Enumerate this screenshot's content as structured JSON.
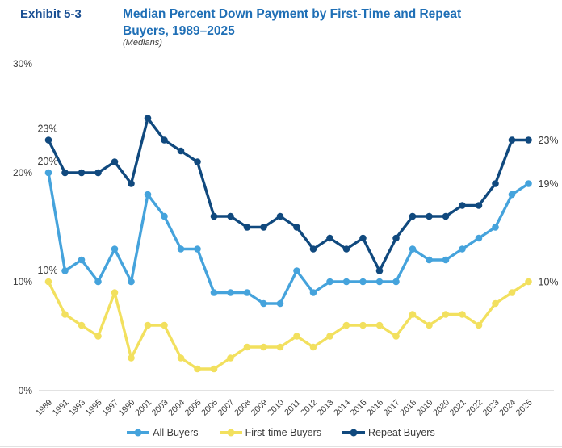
{
  "header": {
    "exhibit_label": "Exhibit 5-3",
    "title_line1": "Median Percent Down Payment by First-Time and Repeat",
    "title_line2": "Buyers, 1989–2025",
    "subtitle": "(Medians)"
  },
  "colors": {
    "exhibit_label": "#194f93",
    "title": "#1f6fb6",
    "text": "#3b3b3b",
    "axis_line": "#d9d9d9",
    "all_buyers": "#45a3dc",
    "first_time_buyers": "#f2e05e",
    "repeat_buyers": "#10497e"
  },
  "chart_data": {
    "type": "line",
    "title": "Median Percent Down Payment by First-Time and Repeat Buyers, 1989–2025",
    "subtitle": "(Medians)",
    "xlabel": "",
    "ylabel": "",
    "ylim": [
      0,
      30
    ],
    "grid": "none",
    "legend_position": "bottom",
    "categories": [
      "1989",
      "1991",
      "1993",
      "1995",
      "1997",
      "1999",
      "2001",
      "2003",
      "2004",
      "2005",
      "2006",
      "2007",
      "2008",
      "2009",
      "2010",
      "2011",
      "2012",
      "2013",
      "2014",
      "2015",
      "2016",
      "2017",
      "2018",
      "2019",
      "2020",
      "2021",
      "2022",
      "2023",
      "2024",
      "2025"
    ],
    "y_axis": {
      "ticks": [
        30,
        20,
        10,
        0
      ],
      "tick_labels": [
        "30%",
        "20%",
        "10%",
        "0%"
      ]
    },
    "series": [
      {
        "name": "All Buyers",
        "color": "#45a3dc",
        "first_label": "20%",
        "last_label": "19%",
        "values": [
          20,
          11,
          12,
          10,
          13,
          10,
          18,
          16,
          13,
          13,
          9,
          9,
          9,
          8,
          8,
          11,
          9,
          10,
          10,
          10,
          10,
          10,
          13,
          12,
          12,
          13,
          14,
          15,
          18,
          19
        ]
      },
      {
        "name": "First-time Buyers",
        "color": "#f2e05e",
        "first_label": "10%",
        "last_label": "10%",
        "values": [
          10,
          7,
          6,
          5,
          9,
          3,
          6,
          6,
          3,
          2,
          2,
          3,
          4,
          4,
          4,
          5,
          4,
          5,
          6,
          6,
          6,
          5,
          7,
          6,
          7,
          7,
          6,
          8,
          9,
          10
        ]
      },
      {
        "name": "Repeat Buyers",
        "color": "#10497e",
        "first_label": "23%",
        "last_label": "23%",
        "values": [
          23,
          20,
          20,
          20,
          21,
          19,
          25,
          23,
          22,
          21,
          16,
          16,
          15,
          15,
          16,
          15,
          13,
          14,
          13,
          14,
          11,
          14,
          16,
          16,
          16,
          17,
          17,
          19,
          23,
          23
        ]
      }
    ]
  }
}
